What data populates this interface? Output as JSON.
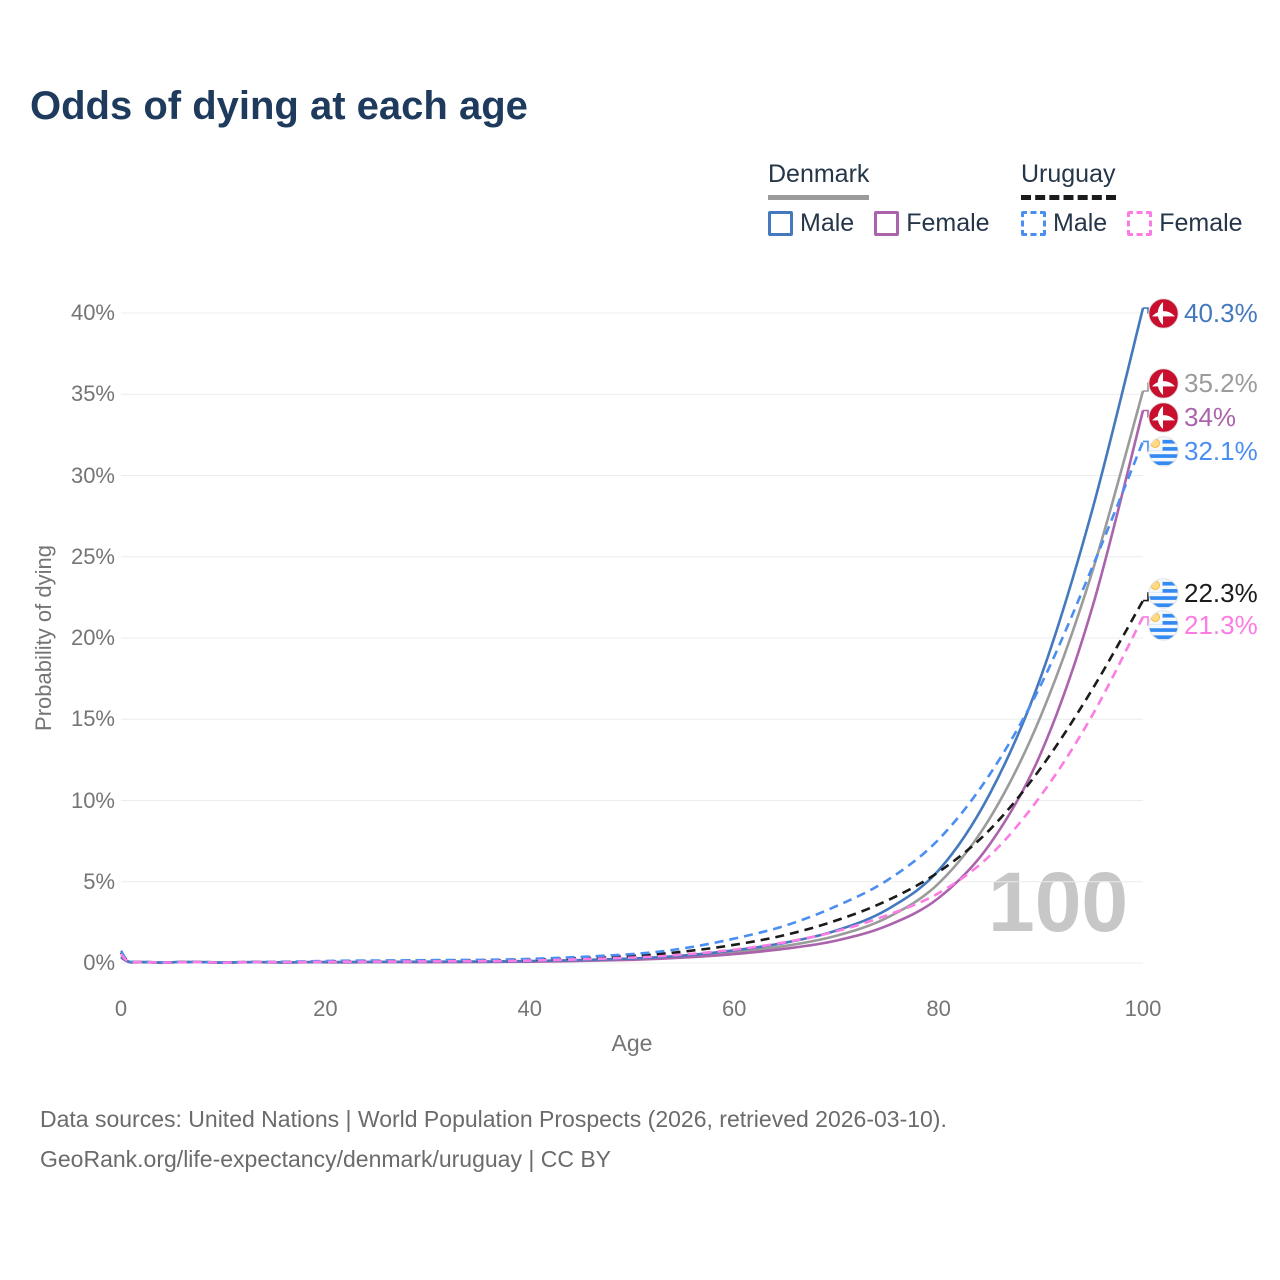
{
  "title": "Odds of dying at each age",
  "legend": {
    "groups": [
      {
        "name": "Denmark",
        "line_style": "solid",
        "underline_color": "#9b9b9b",
        "items": [
          {
            "label": "Male",
            "color": "#4479bd"
          },
          {
            "label": "Female",
            "color": "#ab64ab"
          }
        ]
      },
      {
        "name": "Uruguay",
        "line_style": "dashed",
        "underline_color": "#1b1b1b",
        "items": [
          {
            "label": "Male",
            "color": "#4a8ef2"
          },
          {
            "label": "Female",
            "color": "#fb7ce3"
          }
        ]
      }
    ]
  },
  "chart_data": {
    "type": "line",
    "title": "Odds of dying at each age",
    "xlabel": "Age",
    "ylabel": "Probability of dying",
    "xlim": [
      0,
      100
    ],
    "ylim": [
      0,
      40
    ],
    "x_ticks": [
      0,
      20,
      40,
      60,
      80,
      100
    ],
    "y_ticks": [
      "0%",
      "5%",
      "10%",
      "15%",
      "20%",
      "25%",
      "30%",
      "35%",
      "40%"
    ],
    "grid": "horizontal-only",
    "watermark": "100",
    "x": [
      0,
      1,
      4,
      10,
      16,
      22,
      30,
      40,
      50,
      55,
      60,
      65,
      70,
      75,
      80,
      85,
      90,
      95,
      100
    ],
    "series": [
      {
        "key": "denmark-male",
        "name": "Denmark Male",
        "country": "denmark",
        "color": "#4479bd",
        "dashed": false,
        "end_label": "40.3%",
        "values": [
          0.4,
          0.05,
          0.02,
          0.02,
          0.04,
          0.06,
          0.08,
          0.12,
          0.28,
          0.46,
          0.78,
          1.25,
          2.0,
          3.3,
          5.7,
          10.4,
          17.6,
          27.8,
          40.3
        ]
      },
      {
        "key": "denmark-total",
        "name": "Denmark",
        "country": "denmark",
        "color": "#9b9b9b",
        "dashed": false,
        "end_label": "35.2%",
        "values": [
          0.37,
          0.04,
          0.02,
          0.02,
          0.03,
          0.05,
          0.06,
          0.1,
          0.24,
          0.39,
          0.66,
          1.05,
          1.68,
          2.8,
          4.9,
          8.9,
          15.2,
          24.0,
          35.2
        ]
      },
      {
        "key": "denmark-female",
        "name": "Denmark Female",
        "country": "denmark",
        "color": "#ab64ab",
        "dashed": false,
        "end_label": "34%",
        "values": [
          0.34,
          0.04,
          0.01,
          0.01,
          0.03,
          0.04,
          0.05,
          0.08,
          0.2,
          0.33,
          0.55,
          0.88,
          1.38,
          2.3,
          4.0,
          7.3,
          12.9,
          21.8,
          34.0
        ]
      },
      {
        "key": "uruguay-male",
        "name": "Uruguay Male",
        "country": "uruguay",
        "color": "#4a8ef2",
        "dashed": true,
        "end_label": "32.1%",
        "values": [
          0.75,
          0.07,
          0.03,
          0.03,
          0.08,
          0.14,
          0.17,
          0.25,
          0.55,
          0.9,
          1.5,
          2.3,
          3.5,
          5.1,
          7.6,
          11.6,
          17.1,
          24.3,
          32.1
        ]
      },
      {
        "key": "uruguay-total",
        "name": "Uruguay",
        "country": "uruguay",
        "color": "#1b1b1b",
        "dashed": true,
        "end_label": "22.3%",
        "values": [
          0.65,
          0.06,
          0.03,
          0.03,
          0.06,
          0.11,
          0.14,
          0.2,
          0.44,
          0.7,
          1.12,
          1.72,
          2.62,
          3.85,
          5.6,
          8.2,
          12.0,
          16.8,
          22.3
        ]
      },
      {
        "key": "uruguay-female",
        "name": "Uruguay Female",
        "country": "uruguay",
        "color": "#fb7ce3",
        "dashed": true,
        "end_label": "21.3%",
        "values": [
          0.55,
          0.05,
          0.02,
          0.02,
          0.05,
          0.08,
          0.1,
          0.15,
          0.33,
          0.52,
          0.82,
          1.28,
          1.95,
          2.95,
          4.3,
          6.6,
          10.3,
          15.2,
          21.3
        ]
      }
    ]
  },
  "footer": {
    "line1": "Data sources: United Nations | World Population Prospects (2026, retrieved 2026-03-10).",
    "line2": "GeoRank.org/life-expectancy/denmark/uruguay | CC BY"
  }
}
